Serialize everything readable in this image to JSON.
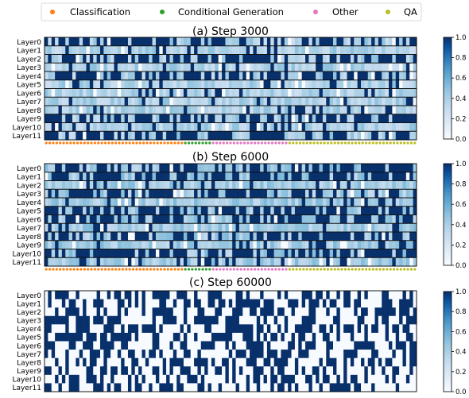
{
  "legend": {
    "placement": "top",
    "items": [
      {
        "label": "Classification",
        "color": "#ff7f0e"
      },
      {
        "label": "Conditional Generation",
        "color": "#2ca02c"
      },
      {
        "label": "Other",
        "color": "#e377c2"
      },
      {
        "label": "QA",
        "color": "#bcbd22"
      }
    ]
  },
  "colorbar": {
    "ticks": [
      "0.0",
      "0.2",
      "0.4",
      "0.6",
      "0.8",
      "1.0"
    ],
    "range": [
      0,
      1
    ],
    "colormap": "Blues",
    "light": "#f7fbff",
    "dark": "#08306b"
  },
  "chart_data": [
    {
      "type": "heatmap",
      "title": "(a) Step 3000",
      "rows": [
        "Layer0",
        "Layer1",
        "Layer2",
        "Layer3",
        "Layer4",
        "Layer5",
        "Layer6",
        "Layer7",
        "Layer8",
        "Layer9",
        "Layer10",
        "Layer11"
      ],
      "task_groups": [
        {
          "name": "Classification",
          "columns": 40
        },
        {
          "name": "Conditional Generation",
          "columns": 8
        },
        {
          "name": "Other",
          "columns": 22
        },
        {
          "name": "QA",
          "columns": 37
        }
      ],
      "grid": true,
      "seed": 11
    },
    {
      "type": "heatmap",
      "title": "(b) Step 6000",
      "rows": [
        "Layer0",
        "Layer1",
        "Layer2",
        "Layer3",
        "Layer4",
        "Layer5",
        "Layer6",
        "Layer7",
        "Layer8",
        "Layer9",
        "Layer10",
        "Layer11"
      ],
      "task_groups": [
        {
          "name": "Classification",
          "columns": 40
        },
        {
          "name": "Conditional Generation",
          "columns": 8
        },
        {
          "name": "Other",
          "columns": 22
        },
        {
          "name": "QA",
          "columns": 37
        }
      ],
      "grid": true,
      "seed": 29
    },
    {
      "type": "heatmap",
      "title": "(c) Step 60000",
      "rows": [
        "Layer0",
        "Layer1",
        "Layer2",
        "Layer3",
        "Layer4",
        "Layer5",
        "Layer6",
        "Layer7",
        "Layer8",
        "Layer9",
        "Layer10",
        "Layer11"
      ],
      "task_groups": [
        {
          "name": "Classification",
          "columns": 40
        },
        {
          "name": "Conditional Generation",
          "columns": 8
        },
        {
          "name": "Other",
          "columns": 22
        },
        {
          "name": "QA",
          "columns": 37
        }
      ],
      "grid": false,
      "seed": 53
    }
  ]
}
